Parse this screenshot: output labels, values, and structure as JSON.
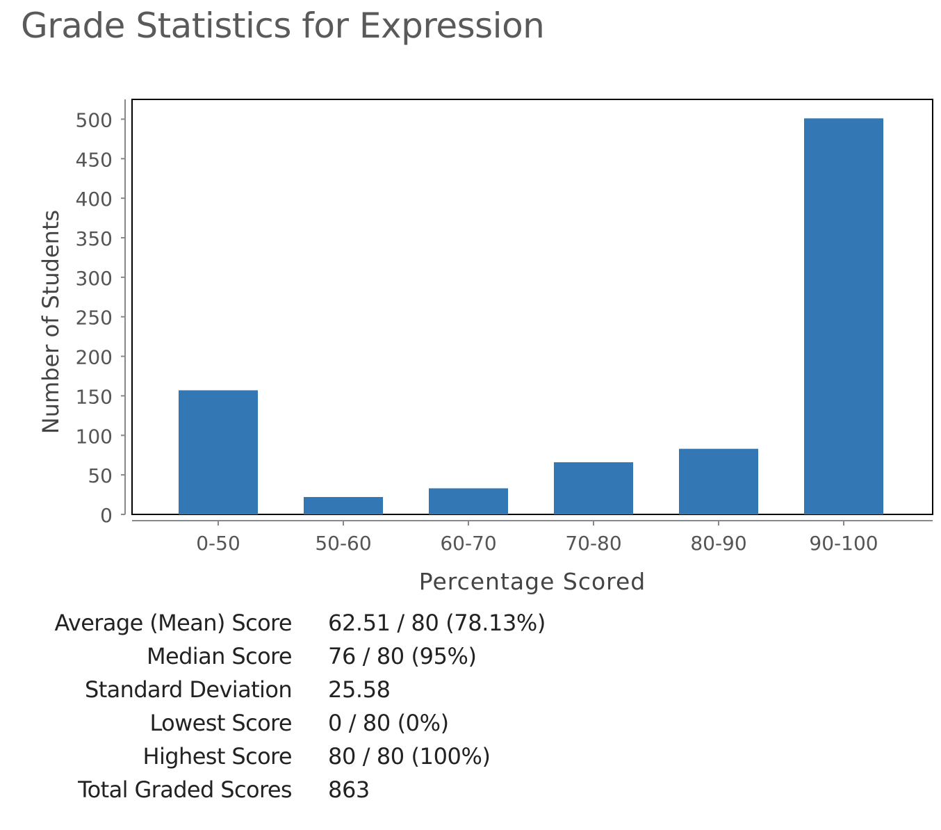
{
  "page": {
    "title": "Grade Statistics for Expression"
  },
  "colors": {
    "bar": "#3477b5",
    "axis_text": "#555555",
    "title_text": "#5a5a5a"
  },
  "chart_data": {
    "type": "bar",
    "categories": [
      "0-50",
      "50-60",
      "60-70",
      "70-80",
      "80-90",
      "90-100"
    ],
    "values": [
      157,
      22,
      33,
      66,
      83,
      501
    ],
    "xlabel": "Percentage Scored",
    "ylabel": "Number of Students",
    "ylim": [
      0,
      525
    ],
    "yticks": [
      0,
      50,
      100,
      150,
      200,
      250,
      300,
      350,
      400,
      450,
      500
    ],
    "grid": false
  },
  "stats": [
    {
      "label": "Average (Mean) Score",
      "value": "62.51 / 80 (78.13%)"
    },
    {
      "label": "Median Score",
      "value": "76 / 80 (95%)"
    },
    {
      "label": "Standard Deviation",
      "value": "25.58"
    },
    {
      "label": "Lowest Score",
      "value": "0 / 80 (0%)"
    },
    {
      "label": "Highest Score",
      "value": "80 / 80 (100%)"
    },
    {
      "label": "Total Graded Scores",
      "value": "863"
    }
  ]
}
